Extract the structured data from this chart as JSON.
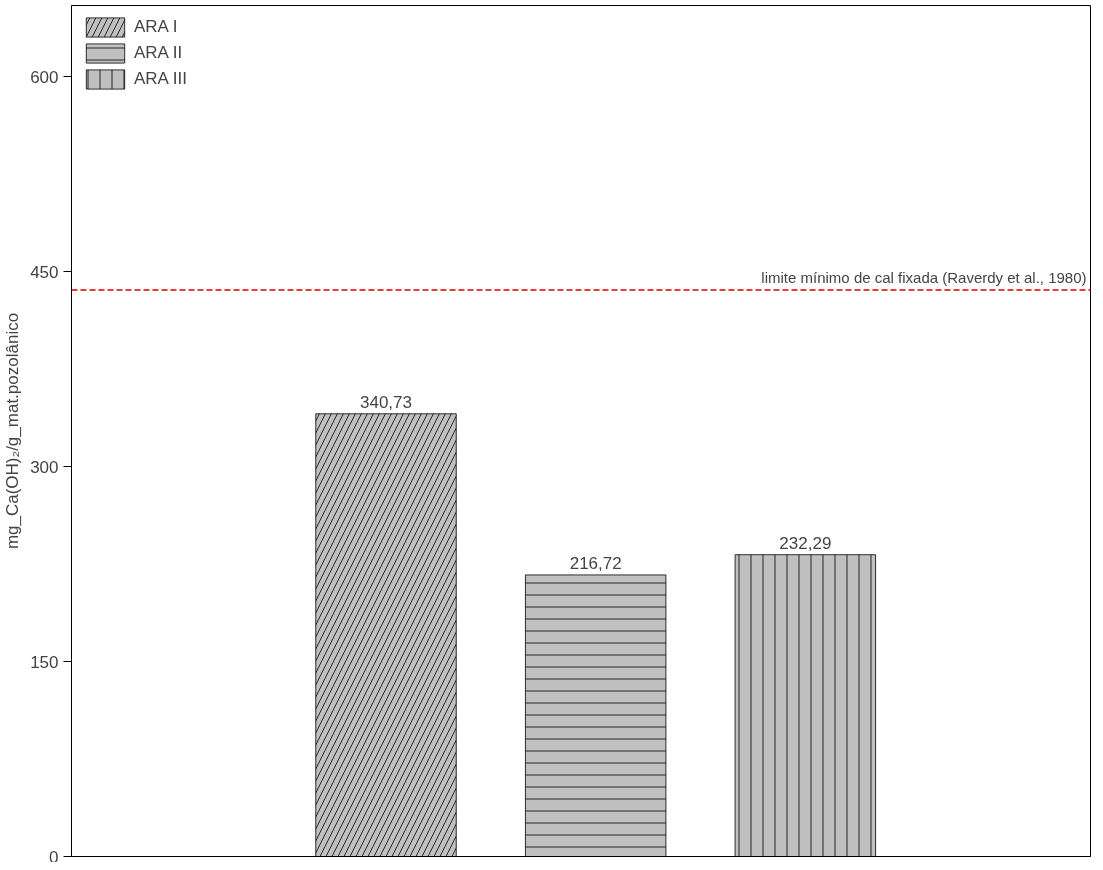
{
  "chart_data": {
    "type": "bar",
    "ylabel": "mg_Ca(OH)₂/g_mat.pozolânico",
    "categories": [
      null,
      null,
      null
    ],
    "series": [
      {
        "name": "ARA I",
        "color": "#c0c0c0",
        "values": [
          340.73,
          null,
          null
        ],
        "value_labels": [
          "340,73",
          null,
          null
        ]
      },
      {
        "name": "ARA II",
        "color": "#c0c0c0",
        "values": [
          null,
          216.72,
          null
        ],
        "value_labels": [
          null,
          "216,72",
          null
        ]
      },
      {
        "name": "ARA III",
        "color": "#c0c0c0",
        "values": [
          null,
          null,
          232.29
        ],
        "value_labels": [
          null,
          null,
          "232,29"
        ]
      }
    ],
    "ylim": [
      0,
      655
    ],
    "yticks": [
      0,
      150,
      300,
      450,
      600
    ],
    "grid": false,
    "legend": "top left",
    "ref_lines": [
      {
        "axis": "y",
        "value": 436,
        "label": "limite mínimo de cal fixada (Raverdy et al., 1980)",
        "color": "#e00000",
        "line_style": "dashed"
      }
    ]
  }
}
